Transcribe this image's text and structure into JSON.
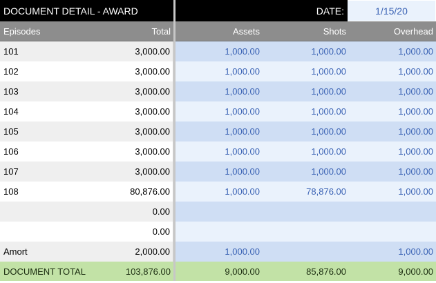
{
  "header": {
    "title": "DOCUMENT DETAIL - AWARD",
    "date_label": "DATE:",
    "date_value": "1/15/20"
  },
  "columns": {
    "episodes": "Episodes",
    "total": "Total",
    "assets": "Assets",
    "shots": "Shots",
    "overhead": "Overhead"
  },
  "rows": [
    {
      "episode": "101",
      "total": "3,000.00",
      "assets": "1,000.00",
      "shots": "1,000.00",
      "overhead": "1,000.00"
    },
    {
      "episode": "102",
      "total": "3,000.00",
      "assets": "1,000.00",
      "shots": "1,000.00",
      "overhead": "1,000.00"
    },
    {
      "episode": "103",
      "total": "3,000.00",
      "assets": "1,000.00",
      "shots": "1,000.00",
      "overhead": "1,000.00"
    },
    {
      "episode": "104",
      "total": "3,000.00",
      "assets": "1,000.00",
      "shots": "1,000.00",
      "overhead": "1,000.00"
    },
    {
      "episode": "105",
      "total": "3,000.00",
      "assets": "1,000.00",
      "shots": "1,000.00",
      "overhead": "1,000.00"
    },
    {
      "episode": "106",
      "total": "3,000.00",
      "assets": "1,000.00",
      "shots": "1,000.00",
      "overhead": "1,000.00"
    },
    {
      "episode": "107",
      "total": "3,000.00",
      "assets": "1,000.00",
      "shots": "1,000.00",
      "overhead": "1,000.00"
    },
    {
      "episode": "108",
      "total": "80,876.00",
      "assets": "1,000.00",
      "shots": "78,876.00",
      "overhead": "1,000.00"
    },
    {
      "episode": "",
      "total": "0.00",
      "assets": "",
      "shots": "",
      "overhead": ""
    },
    {
      "episode": "",
      "total": "0.00",
      "assets": "",
      "shots": "",
      "overhead": ""
    },
    {
      "episode": "Amort",
      "total": "2,000.00",
      "assets": "1,000.00",
      "shots": "",
      "overhead": "1,000.00"
    }
  ],
  "document_total": {
    "label": "DOCUMENT TOTAL",
    "total": "103,876.00",
    "assets": "9,000.00",
    "shots": "85,876.00",
    "overhead": "9,000.00"
  },
  "colors": {
    "title_bg": "#000000",
    "header_bg": "#8d8d8d",
    "value_text": "#3a62b4",
    "total_row_bg": "#c2e2a6"
  }
}
